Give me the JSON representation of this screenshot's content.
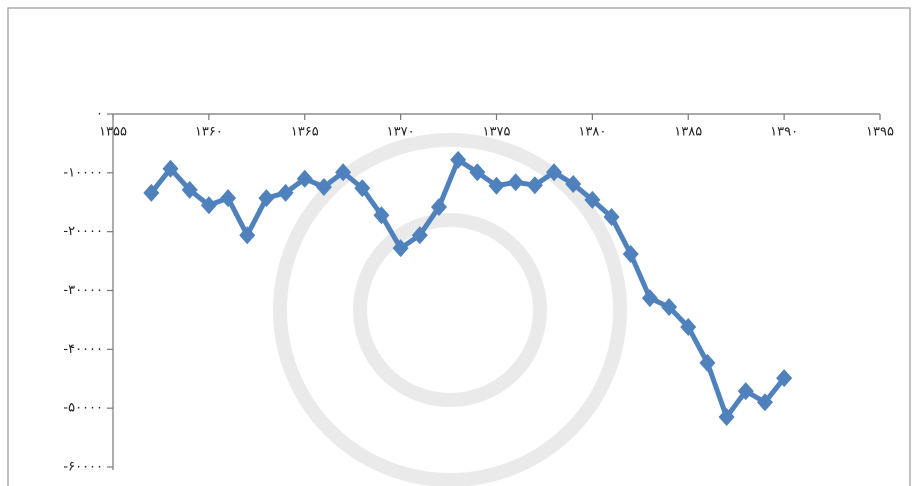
{
  "chart_data": {
    "type": "line",
    "x": [
      1357,
      1358,
      1359,
      1360,
      1361,
      1362,
      1363,
      1364,
      1365,
      1366,
      1367,
      1368,
      1369,
      1370,
      1371,
      1372,
      1373,
      1374,
      1375,
      1376,
      1377,
      1378,
      1379,
      1380,
      1381,
      1382,
      1383,
      1384,
      1385,
      1386,
      1387,
      1388,
      1389,
      1390
    ],
    "series": [
      {
        "color": "#4f81bd",
        "values": [
          -13400,
          -9300,
          -12900,
          -15500,
          -14300,
          -20600,
          -14300,
          -13400,
          -11000,
          -12400,
          -9900,
          -12600,
          -17200,
          -22800,
          -20600,
          -15800,
          -7800,
          -9900,
          -12200,
          -11600,
          -12100,
          -9900,
          -11900,
          -14600,
          -17500,
          -23800,
          -31300,
          -32800,
          -36200,
          -42300,
          -51500,
          -47100,
          -49000,
          -44900
        ]
      }
    ],
    "xlim": [
      1355,
      1395
    ],
    "xticks": [
      {
        "value": 1355,
        "label": "۱۳۵۵"
      },
      {
        "value": 1360,
        "label": "۱۳۶۰"
      },
      {
        "value": 1365,
        "label": "۱۳۶۵"
      },
      {
        "value": 1370,
        "label": "۱۳۷۰"
      },
      {
        "value": 1375,
        "label": "۱۳۷۵"
      },
      {
        "value": 1380,
        "label": "۱۳۸۰"
      },
      {
        "value": 1385,
        "label": "۱۳۸۵"
      },
      {
        "value": 1390,
        "label": "۱۳۹۰"
      },
      {
        "value": 1395,
        "label": "۱۳۹۵"
      }
    ],
    "ylim": [
      -60000,
      0
    ],
    "yticks": [
      {
        "value": 0,
        "label": "۰"
      },
      {
        "value": -10000,
        "label": "-۱۰۰۰۰"
      },
      {
        "value": -20000,
        "label": "-۲۰۰۰۰"
      },
      {
        "value": -30000,
        "label": "-۳۰۰۰۰"
      },
      {
        "value": -40000,
        "label": "-۴۰۰۰۰"
      },
      {
        "value": -50000,
        "label": "-۵۰۰۰۰"
      },
      {
        "value": -60000,
        "label": "-۶۰۰۰۰"
      }
    ]
  }
}
